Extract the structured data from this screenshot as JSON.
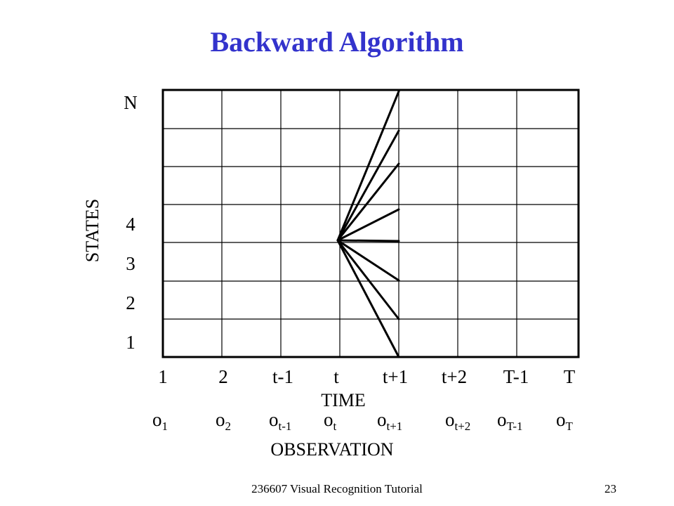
{
  "slide": {
    "title": "Backward Algorithm",
    "footer": "236607 Visual Recognition Tutorial",
    "page_number": "23"
  },
  "diagram": {
    "y_axis_title": "STATES",
    "x_axis_title": "TIME",
    "observation_title": "OBSERVATION",
    "state_labels": [
      "N",
      "4",
      "3",
      "2",
      "1"
    ],
    "time_labels": [
      "1",
      "2",
      "t-1",
      "t",
      "t+1",
      "t+2",
      "T-1",
      "T"
    ],
    "observations": [
      {
        "base": "o",
        "sub": "1"
      },
      {
        "base": "o",
        "sub": "2"
      },
      {
        "base": "o",
        "sub": "t-1"
      },
      {
        "base": "o",
        "sub": "t"
      },
      {
        "base": "o",
        "sub": "t+1"
      },
      {
        "base": "o",
        "sub": "t+2"
      },
      {
        "base": "o",
        "sub": "T-1"
      },
      {
        "base": "o",
        "sub": "T"
      }
    ],
    "colors": {
      "title": "#3333cc",
      "grid": "#000000"
    }
  }
}
